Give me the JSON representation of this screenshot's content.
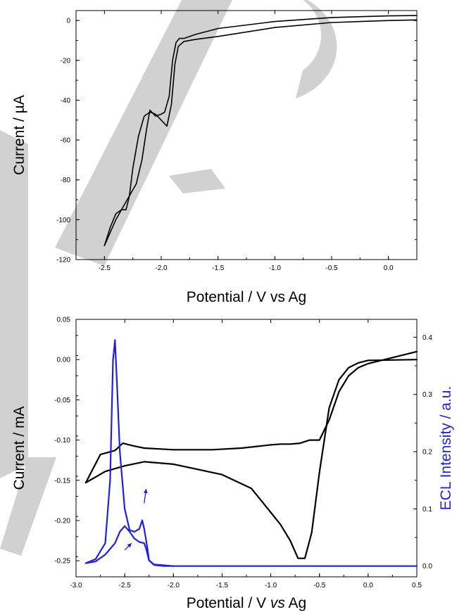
{
  "chart_data": [
    {
      "type": "line",
      "xlabel": "Potential / V vs Ag",
      "ylabel": "Current / µA",
      "xlim": [
        -2.75,
        0.25
      ],
      "ylim": [
        -120,
        5
      ],
      "xticks": [
        "-2.5",
        "-2.0",
        "-1.5",
        "-1.0",
        "-0.5",
        "0.0"
      ],
      "yticks": [
        "0",
        "-20",
        "-40",
        "-60",
        "-80",
        "-100",
        "-120"
      ],
      "grid": false,
      "series": [
        {
          "color": "#000000",
          "x": [
            0.25,
            0.0,
            -0.5,
            -1.0,
            -1.5,
            -1.7,
            -1.8,
            -1.84,
            -1.87,
            -1.9,
            -1.93,
            -1.97,
            -2.0,
            -2.05,
            -2.1,
            -2.13,
            -2.17,
            -2.22,
            -2.3,
            -2.4,
            -2.5
          ],
          "y": [
            2.5,
            2.3,
            1.5,
            -0.5,
            -4,
            -7,
            -9,
            -9,
            -11,
            -20,
            -38,
            -46,
            -47,
            -48,
            -45,
            -55,
            -70,
            -82,
            -90,
            -100,
            -113
          ]
        },
        {
          "color": "#000000",
          "x": [
            -2.5,
            -2.45,
            -2.4,
            -2.35,
            -2.31,
            -2.28,
            -2.25,
            -2.2,
            -2.15,
            -2.1,
            -2.05,
            -2.0,
            -1.95,
            -1.91,
            -1.88,
            -1.85,
            -1.8,
            -1.7,
            -1.5,
            -1.0,
            -0.5,
            0.0,
            0.25
          ],
          "y": [
            -113,
            -104,
            -97,
            -95,
            -95,
            -88,
            -74,
            -58,
            -48,
            -46,
            -47,
            -50,
            -53,
            -42,
            -22,
            -13,
            -10.5,
            -9.5,
            -8,
            -3.5,
            -1,
            0,
            0.3
          ]
        }
      ]
    },
    {
      "type": "line",
      "xlabel_parts": [
        "Potential / V ",
        "vs",
        " Ag"
      ],
      "ylabel": "Current / mA",
      "ylabel_right": "ECL Intensity / a.u.",
      "xlim": [
        -3.0,
        0.5
      ],
      "ylim": [
        -0.27,
        0.05
      ],
      "ylim_right": [
        -0.0188,
        0.4312
      ],
      "xticks": [
        "-3.0",
        "-2.5",
        "-2.0",
        "-1.5",
        "-1.0",
        "-0.5",
        "0.0",
        "0.5"
      ],
      "yticks": [
        "0.05",
        "0.00",
        "-0.05",
        "-0.10",
        "-0.15",
        "-0.20",
        "-0.25"
      ],
      "yticks_right": [
        "0.4",
        "0.3",
        "0.2",
        "0.1",
        "0.0"
      ],
      "grid": false,
      "series": [
        {
          "color": "#000000",
          "axis": "left",
          "x": [
            -2.9,
            -2.7,
            -2.5,
            -2.3,
            -2.0,
            -1.5,
            -1.2,
            -1.0,
            -0.9,
            -0.8,
            -0.72,
            -0.65,
            -0.58,
            -0.5,
            -0.4,
            -0.3,
            -0.2,
            -0.1,
            0.0,
            0.5
          ],
          "y": [
            -0.153,
            -0.139,
            -0.132,
            -0.127,
            -0.13,
            -0.143,
            -0.16,
            -0.19,
            -0.205,
            -0.225,
            -0.247,
            -0.247,
            -0.215,
            -0.14,
            -0.06,
            -0.025,
            -0.01,
            -0.004,
            -0.001,
            0.0
          ]
        },
        {
          "color": "#000000",
          "axis": "left",
          "x": [
            0.5,
            0.0,
            -0.1,
            -0.2,
            -0.3,
            -0.4,
            -0.5,
            -0.6,
            -0.7,
            -0.8,
            -0.9,
            -1.0,
            -1.3,
            -1.6,
            -2.0,
            -2.3,
            -2.42,
            -2.52,
            -2.6,
            -2.75,
            -2.9
          ],
          "y": [
            0.01,
            -0.005,
            -0.01,
            -0.02,
            -0.04,
            -0.075,
            -0.1,
            -0.1,
            -0.104,
            -0.105,
            -0.105,
            -0.106,
            -0.11,
            -0.112,
            -0.112,
            -0.11,
            -0.107,
            -0.104,
            -0.113,
            -0.118,
            -0.153
          ]
        },
        {
          "color": "#1f1fe6",
          "axis": "right",
          "x": [
            -2.9,
            -2.8,
            -2.7,
            -2.65,
            -2.62,
            -2.6,
            -2.58,
            -2.55,
            -2.5,
            -2.45,
            -2.4,
            -2.35,
            -2.32,
            -2.3,
            -2.27,
            -2.25,
            -2.2,
            -2.1,
            -2.0,
            0.5
          ],
          "y": [
            0.005,
            0.012,
            0.04,
            0.15,
            0.36,
            0.395,
            0.32,
            0.2,
            0.1,
            0.063,
            0.06,
            0.065,
            0.08,
            0.065,
            0.035,
            0.01,
            0.002,
            0.0,
            0.0,
            0.0
          ]
        },
        {
          "color": "#1f1fe6",
          "axis": "right",
          "x": [
            -2.0,
            -2.2,
            -2.25,
            -2.28,
            -2.3,
            -2.35,
            -2.4,
            -2.45,
            -2.5,
            -2.55,
            -2.6,
            -2.7,
            -2.8,
            -2.9
          ],
          "y": [
            0.0,
            0.003,
            0.01,
            0.03,
            0.04,
            0.042,
            0.048,
            0.06,
            0.07,
            0.06,
            0.04,
            0.02,
            0.008,
            0.005
          ]
        }
      ]
    }
  ]
}
